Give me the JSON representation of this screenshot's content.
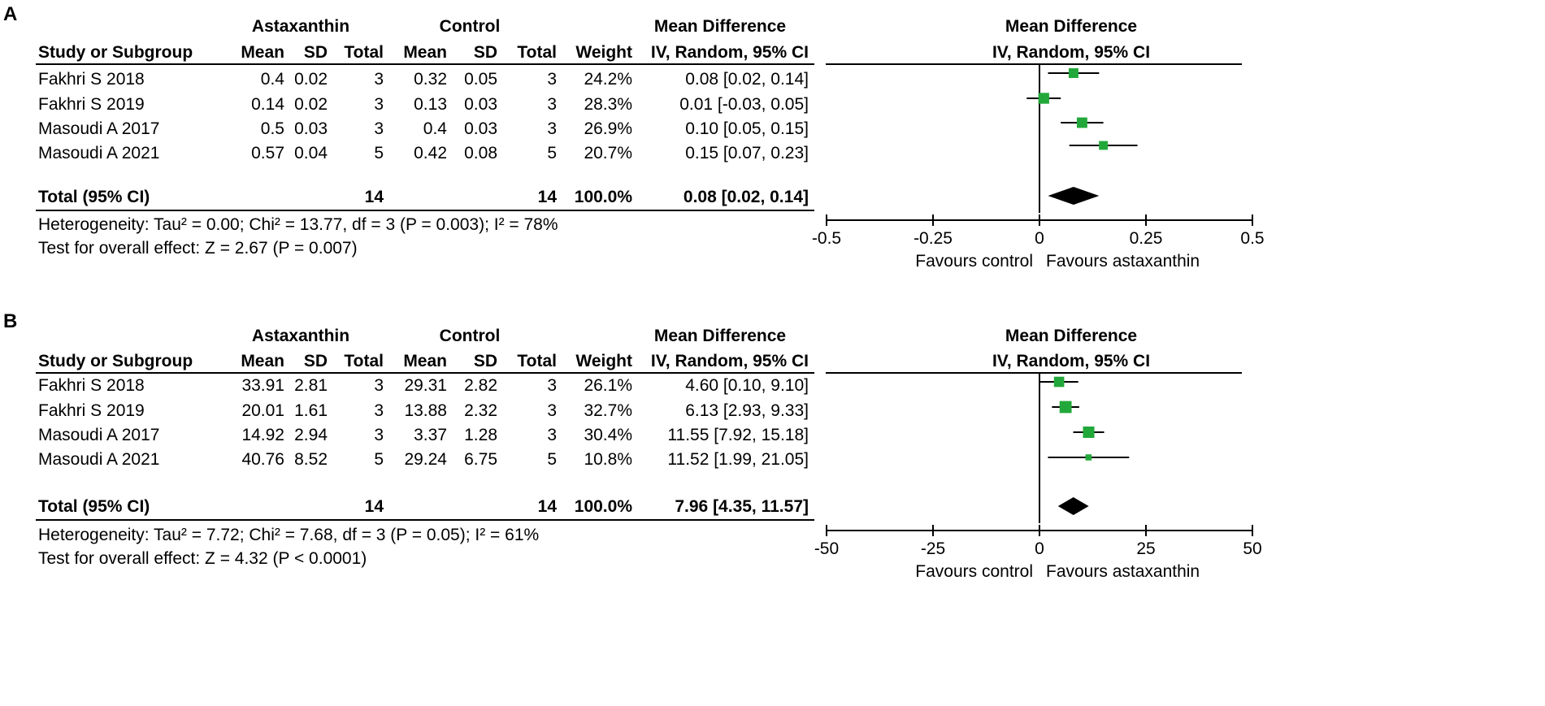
{
  "chart_data": [
    {
      "type": "forest",
      "panel_label": "A",
      "group_headers": {
        "treatment": "Astaxanthin",
        "control": "Control",
        "effect": "Mean Difference",
        "plot": "Mean Difference"
      },
      "column_headers": {
        "study": "Study or Subgroup",
        "mean": "Mean",
        "sd": "SD",
        "total": "Total",
        "weight": "Weight",
        "ci": "IV, Random, 95% CI",
        "plot_method": "IV, Random, 95% CI"
      },
      "studies": [
        {
          "name": "Fakhri S 2018",
          "t_mean": "0.4",
          "t_sd": "0.02",
          "t_total": "3",
          "c_mean": "0.32",
          "c_sd": "0.05",
          "c_total": "3",
          "weight": "24.2%",
          "ci_text": "0.08 [0.02, 0.14]",
          "md": 0.08,
          "lo": 0.02,
          "hi": 0.14,
          "w": 24.2
        },
        {
          "name": "Fakhri S 2019",
          "t_mean": "0.14",
          "t_sd": "0.02",
          "t_total": "3",
          "c_mean": "0.13",
          "c_sd": "0.03",
          "c_total": "3",
          "weight": "28.3%",
          "ci_text": "0.01 [-0.03, 0.05]",
          "md": 0.01,
          "lo": -0.03,
          "hi": 0.05,
          "w": 28.3
        },
        {
          "name": "Masoudi A 2017",
          "t_mean": "0.5",
          "t_sd": "0.03",
          "t_total": "3",
          "c_mean": "0.4",
          "c_sd": "0.03",
          "c_total": "3",
          "weight": "26.9%",
          "ci_text": "0.10 [0.05, 0.15]",
          "md": 0.1,
          "lo": 0.05,
          "hi": 0.15,
          "w": 26.9
        },
        {
          "name": "Masoudi A 2021",
          "t_mean": "0.57",
          "t_sd": "0.04",
          "t_total": "5",
          "c_mean": "0.42",
          "c_sd": "0.08",
          "c_total": "5",
          "weight": "20.7%",
          "ci_text": "0.15 [0.07, 0.23]",
          "md": 0.15,
          "lo": 0.07,
          "hi": 0.23,
          "w": 20.7
        }
      ],
      "total": {
        "label": "Total (95% CI)",
        "t_total": "14",
        "c_total": "14",
        "weight": "100.0%",
        "ci_text": "0.08 [0.02, 0.14]",
        "md": 0.08,
        "lo": 0.02,
        "hi": 0.14
      },
      "heterogeneity": "Heterogeneity: Tau² = 0.00; Chi² = 13.77, df = 3 (P = 0.003); I² = 78%",
      "overall_effect": "Test for overall effect: Z = 2.67 (P = 0.007)",
      "axis": {
        "min": -0.5,
        "max": 0.5,
        "ticks": [
          -0.5,
          -0.25,
          0,
          0.25,
          0.5
        ],
        "tick_labels": [
          "-0.5",
          "-0.25",
          "0",
          "0.25",
          "0.5"
        ]
      },
      "favours_left": "Favours control",
      "favours_right": "Favours astaxanthin",
      "colors": {
        "square": "#22a83a",
        "diamond": "#000000"
      }
    },
    {
      "type": "forest",
      "panel_label": "B",
      "group_headers": {
        "treatment": "Astaxanthin",
        "control": "Control",
        "effect": "Mean Difference",
        "plot": "Mean Difference"
      },
      "column_headers": {
        "study": "Study or Subgroup",
        "mean": "Mean",
        "sd": "SD",
        "total": "Total",
        "weight": "Weight",
        "ci": "IV, Random, 95% CI",
        "plot_method": "IV, Random, 95% CI"
      },
      "studies": [
        {
          "name": "Fakhri S 2018",
          "t_mean": "33.91",
          "t_sd": "2.81",
          "t_total": "3",
          "c_mean": "29.31",
          "c_sd": "2.82",
          "c_total": "3",
          "weight": "26.1%",
          "ci_text": "4.60 [0.10, 9.10]",
          "md": 4.6,
          "lo": 0.1,
          "hi": 9.1,
          "w": 26.1
        },
        {
          "name": "Fakhri S 2019",
          "t_mean": "20.01",
          "t_sd": "1.61",
          "t_total": "3",
          "c_mean": "13.88",
          "c_sd": "2.32",
          "c_total": "3",
          "weight": "32.7%",
          "ci_text": "6.13 [2.93, 9.33]",
          "md": 6.13,
          "lo": 2.93,
          "hi": 9.33,
          "w": 32.7
        },
        {
          "name": "Masoudi A 2017",
          "t_mean": "14.92",
          "t_sd": "2.94",
          "t_total": "3",
          "c_mean": "3.37",
          "c_sd": "1.28",
          "c_total": "3",
          "weight": "30.4%",
          "ci_text": "11.55 [7.92, 15.18]",
          "md": 11.55,
          "lo": 7.92,
          "hi": 15.18,
          "w": 30.4
        },
        {
          "name": "Masoudi A 2021",
          "t_mean": "40.76",
          "t_sd": "8.52",
          "t_total": "5",
          "c_mean": "29.24",
          "c_sd": "6.75",
          "c_total": "5",
          "weight": "10.8%",
          "ci_text": "11.52 [1.99, 21.05]",
          "md": 11.52,
          "lo": 1.99,
          "hi": 21.05,
          "w": 10.8
        }
      ],
      "total": {
        "label": "Total (95% CI)",
        "t_total": "14",
        "c_total": "14",
        "weight": "100.0%",
        "ci_text": "7.96 [4.35, 11.57]",
        "md": 7.96,
        "lo": 4.35,
        "hi": 11.57
      },
      "heterogeneity": "Heterogeneity: Tau² = 7.72; Chi² = 7.68, df = 3 (P = 0.05); I² = 61%",
      "overall_effect": "Test for overall effect: Z = 4.32 (P < 0.0001)",
      "axis": {
        "min": -50,
        "max": 50,
        "ticks": [
          -50,
          -25,
          0,
          25,
          50
        ],
        "tick_labels": [
          "-50",
          "-25",
          "0",
          "25",
          "50"
        ]
      },
      "favours_left": "Favours control",
      "favours_right": "Favours astaxanthin",
      "colors": {
        "square": "#22a83a",
        "diamond": "#000000"
      }
    }
  ]
}
